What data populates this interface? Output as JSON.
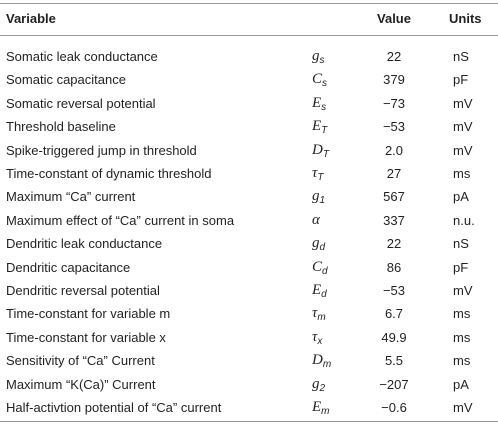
{
  "table": {
    "header": [
      "Variable",
      "Value",
      "Units"
    ],
    "rows": [
      {
        "variable": "Somatic leak conductance",
        "symbol": {
          "base": "g",
          "sub": "s"
        },
        "value": "22",
        "units": "nS"
      },
      {
        "variable": "Somatic capacitance",
        "symbol": {
          "base": "C",
          "sub": "s"
        },
        "value": "379",
        "units": "pF"
      },
      {
        "variable": "Somatic reversal potential",
        "symbol": {
          "base": "E",
          "sub": "s"
        },
        "value": "−73",
        "units": "mV"
      },
      {
        "variable": "Threshold baseline",
        "symbol": {
          "base": "E",
          "sub": "T"
        },
        "value": "−53",
        "units": "mV"
      },
      {
        "variable": "Spike-triggered jump in threshold",
        "symbol": {
          "base": "D",
          "sub": "T"
        },
        "value": "2.0",
        "units": "mV"
      },
      {
        "variable": "Time-constant of dynamic threshold",
        "symbol": {
          "base": "τ",
          "sub": "T"
        },
        "value": "27",
        "units": "ms"
      },
      {
        "variable": "Maximum “Ca” current",
        "symbol": {
          "base": "g",
          "sub": "1"
        },
        "value": "567",
        "units": "pA"
      },
      {
        "variable": "Maximum effect of “Ca” current in soma",
        "symbol": {
          "base": "α"
        },
        "value": "337",
        "units": "n.u."
      },
      {
        "variable": "Dendritic leak conductance",
        "symbol": {
          "base": "g",
          "sub": "d"
        },
        "value": "22",
        "units": "nS"
      },
      {
        "variable": "Dendritic capacitance",
        "symbol": {
          "base": "C",
          "sub": "d"
        },
        "value": "86",
        "units": "pF"
      },
      {
        "variable": "Dendritic reversal potential",
        "symbol": {
          "base": "E",
          "sub": "d"
        },
        "value": "−53",
        "units": "mV"
      },
      {
        "variable": "Time-constant for variable m",
        "symbol": {
          "base": "τ",
          "sub": "m"
        },
        "value": "6.7",
        "units": "ms"
      },
      {
        "variable": "Time-constant for variable x",
        "symbol": {
          "base": "τ",
          "sub": "x"
        },
        "value": "49.9",
        "units": "ms"
      },
      {
        "variable": "Sensitivity of “Ca” Current",
        "symbol": {
          "base": "D",
          "sub": "m"
        },
        "value": "5.5",
        "units": "ms"
      },
      {
        "variable": "Maximum “K(Ca)” Current",
        "symbol": {
          "base": "g",
          "sub": "2"
        },
        "value": "−207",
        "units": "pA"
      },
      {
        "variable": "Half-activtion potential of “Ca” current",
        "symbol": {
          "base": "E",
          "sub": "m"
        },
        "value": "−0.6",
        "units": "mV"
      }
    ]
  }
}
